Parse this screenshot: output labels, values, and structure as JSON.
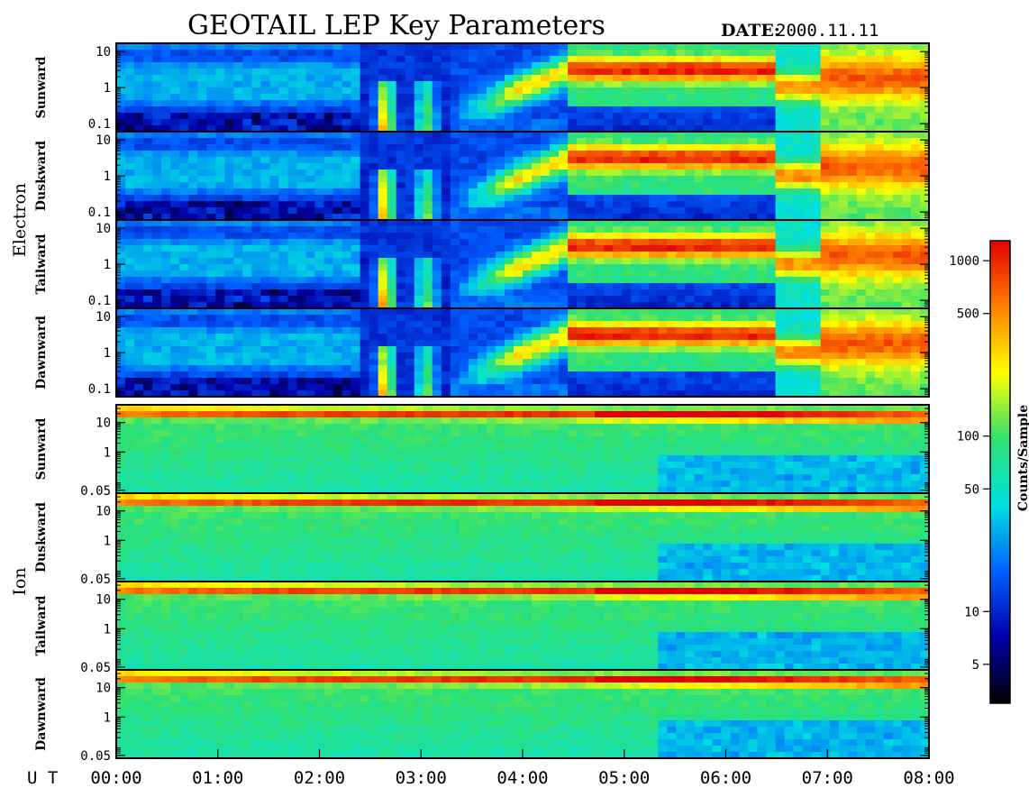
{
  "title": "GEOTAIL LEP Key Parameters",
  "date": {
    "label": "DATE:",
    "value": "2000.11.11"
  },
  "time_axis_label": "U T",
  "colorbar": {
    "label": "Counts/Sample",
    "scale": "log",
    "range": [
      3,
      1300
    ],
    "ticks": [
      5,
      10,
      50,
      100,
      500,
      1000
    ],
    "tick_labels": [
      "5",
      "10",
      "50",
      "100",
      "500",
      "1000"
    ],
    "colors": [
      "#000000",
      "#0000a8",
      "#0060ff",
      "#00e0e0",
      "#30e070",
      "#ffff00",
      "#ff8000",
      "#e00000"
    ]
  },
  "chart_data": {
    "type": "heatmap",
    "date": "2000.11.11",
    "x_unit": "UT",
    "x_range": [
      "00:00",
      "08:00"
    ],
    "x_ticks": [
      "00:00",
      "01:00",
      "02:00",
      "03:00",
      "04:00",
      "05:00",
      "06:00",
      "07:00",
      "08:00"
    ],
    "y_scale": "log",
    "z_label": "Counts/Sample",
    "groups": [
      {
        "species": "Electron",
        "y_range": [
          0.06,
          17
        ],
        "y_ticks": [
          0.1,
          1,
          10
        ],
        "y_tick_labels": [
          "0.1",
          "1",
          "10"
        ],
        "panels": [
          {
            "direction": "Sunward"
          },
          {
            "direction": "Duskward"
          },
          {
            "direction": "Tailward"
          },
          {
            "direction": "Dawnward"
          }
        ]
      },
      {
        "species": "Ion",
        "y_range": [
          0.04,
          40
        ],
        "y_ticks": [
          0.05,
          1,
          10
        ],
        "y_tick_labels": [
          "0.05",
          "1",
          "10"
        ],
        "panels": [
          {
            "direction": "Sunward"
          },
          {
            "direction": "Duskward"
          },
          {
            "direction": "Tailward"
          },
          {
            "direction": "Dawnward"
          }
        ]
      }
    ]
  }
}
